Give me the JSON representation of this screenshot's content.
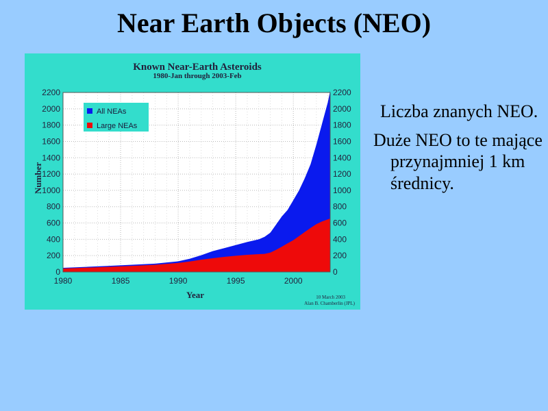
{
  "slide": {
    "title": "Near Earth Objects (NEO)",
    "bullets": [
      "Liczba znanych NEO.",
      "Duże NEO to te mające przynajmniej 1 km średnicy."
    ]
  },
  "chart_data": {
    "type": "area",
    "title": "Known Near-Earth Asteroids",
    "subtitle": "1980-Jan through 2003-Feb",
    "xlabel": "Year",
    "ylabel": "Number",
    "xlim": [
      1980,
      2003.2
    ],
    "ylim": [
      0,
      2200
    ],
    "x_ticks": [
      "1980",
      "1985",
      "1990",
      "1995",
      "2000"
    ],
    "y_ticks": [
      "0",
      "200",
      "400",
      "600",
      "800",
      "1000",
      "1200",
      "1400",
      "1600",
      "1800",
      "2000",
      "2200"
    ],
    "grid": true,
    "legend_position": "top-left",
    "credit": [
      "10 March 2003",
      "Alan B. Chamberlin (JPL)"
    ],
    "colors": {
      "panel": "#33ddcc",
      "plot_bg": "#ffffff",
      "all": "#0a1aee",
      "large": "#ee0a0a",
      "text": "#221f3a"
    },
    "series": [
      {
        "name": "All NEAs",
        "x": [
          1980,
          1982,
          1984,
          1986,
          1988,
          1990,
          1991,
          1992,
          1993,
          1994,
          1995,
          1996,
          1997,
          1997.5,
          1998,
          1998.5,
          1999,
          1999.5,
          2000,
          2000.5,
          2001,
          2001.5,
          2002,
          2002.5,
          2003,
          2003.2
        ],
        "values": [
          50,
          62,
          75,
          88,
          102,
          130,
          162,
          205,
          255,
          292,
          330,
          368,
          400,
          430,
          480,
          580,
          680,
          760,
          880,
          1000,
          1150,
          1320,
          1560,
          1820,
          2080,
          2220
        ]
      },
      {
        "name": "Large NEAs",
        "x": [
          1980,
          1982,
          1984,
          1986,
          1988,
          1990,
          1991,
          1992,
          1993,
          1994,
          1995,
          1996,
          1997,
          1997.5,
          1998,
          1998.5,
          1999,
          1999.5,
          2000,
          2000.5,
          2001,
          2001.5,
          2002,
          2002.5,
          2003,
          2003.2
        ],
        "values": [
          42,
          52,
          63,
          75,
          88,
          110,
          128,
          150,
          168,
          185,
          198,
          210,
          218,
          222,
          238,
          270,
          310,
          350,
          390,
          440,
          490,
          540,
          585,
          620,
          645,
          655
        ]
      }
    ]
  }
}
